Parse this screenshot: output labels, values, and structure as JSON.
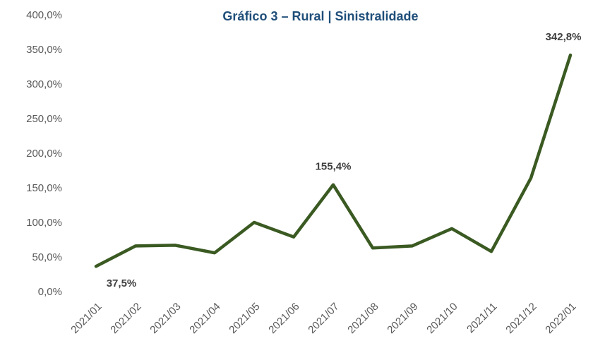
{
  "chart_data": {
    "type": "line",
    "title": "Gráfico 3 – Rural | Sinistralidade",
    "categories": [
      "2021/01",
      "2021/02",
      "2021/03",
      "2021/04",
      "2021/05",
      "2021/06",
      "2021/07",
      "2021/08",
      "2021/09",
      "2021/10",
      "2021/11",
      "2021/12",
      "2022/01"
    ],
    "series": [
      {
        "name": null,
        "color": "#3a5a22",
        "values": [
          37.5,
          67,
          68,
          57,
          101,
          80,
          155.4,
          64,
          67,
          92,
          59,
          165,
          342.8
        ],
        "value_labels": [
          "37,5%",
          null,
          null,
          null,
          null,
          null,
          "155,4%",
          null,
          null,
          null,
          null,
          null,
          "342,8%"
        ]
      }
    ],
    "ylim": [
      0,
      400
    ],
    "yticks": [
      {
        "value": 0,
        "label": "0,0%"
      },
      {
        "value": 50,
        "label": "50,0%"
      },
      {
        "value": 100,
        "label": "100,0%"
      },
      {
        "value": 150,
        "label": "150,0%"
      },
      {
        "value": 200,
        "label": "200,0%"
      },
      {
        "value": 250,
        "label": "250,0%"
      },
      {
        "value": 300,
        "label": "300,0%"
      },
      {
        "value": 350,
        "label": "350,0%"
      },
      {
        "value": 400,
        "label": "400,0%"
      }
    ],
    "grid": false
  }
}
